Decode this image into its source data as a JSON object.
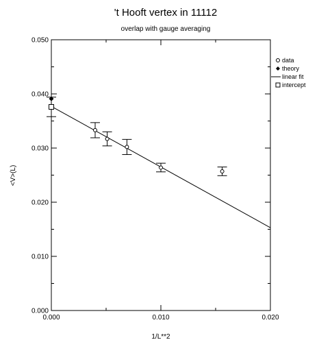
{
  "chart_data": {
    "type": "scatter",
    "title": "'t Hooft vertex in 11112",
    "subtitle": "overlap with gauge averaging",
    "xlabel": "1/L**2",
    "ylabel": "<V>(L)",
    "xlim": [
      0.0,
      0.02
    ],
    "ylim": [
      0.0,
      0.05
    ],
    "x_ticks": [
      "0.000",
      "0.010",
      "0.020"
    ],
    "y_ticks": [
      "0.000",
      "0.010",
      "0.020",
      "0.030",
      "0.040",
      "0.050"
    ],
    "grid": false,
    "legend_position": "right",
    "series": [
      {
        "name": "data",
        "marker": "open-circle",
        "points": [
          {
            "x": 0.004,
            "y": 0.0333,
            "err": 0.0014
          },
          {
            "x": 0.0051,
            "y": 0.0317,
            "err": 0.0013
          },
          {
            "x": 0.0069,
            "y": 0.0302,
            "err": 0.0014
          },
          {
            "x": 0.01,
            "y": 0.0264,
            "err": 0.0008
          },
          {
            "x": 0.0156,
            "y": 0.0257,
            "err": 0.0008
          }
        ]
      },
      {
        "name": "theory",
        "marker": "filled-diamond",
        "points": [
          {
            "x": 0.0,
            "y": 0.0391
          }
        ]
      },
      {
        "name": "linear fit",
        "marker": "line",
        "points": [
          {
            "x": 0.0,
            "y": 0.0377
          },
          {
            "x": 0.02,
            "y": 0.0153
          }
        ]
      },
      {
        "name": "intercept",
        "marker": "open-square",
        "points": [
          {
            "x": 0.0,
            "y": 0.0376,
            "err": 0.0018
          }
        ]
      }
    ]
  }
}
